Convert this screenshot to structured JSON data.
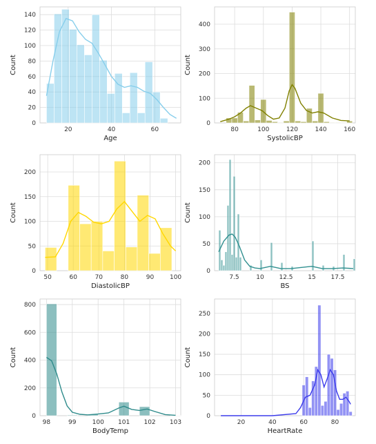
{
  "chart_data": [
    {
      "type": "bar",
      "xlabel": "Age",
      "ylabel": "Count",
      "color": "#87CEEB",
      "xlim": [
        7,
        72
      ],
      "ylim": [
        0,
        150
      ],
      "xticks": [
        20,
        40,
        60
      ],
      "yticks": [
        0,
        20,
        40,
        60,
        80,
        100,
        120,
        140
      ],
      "grid": true,
      "bins": [
        {
          "x0": 10,
          "x1": 13.5,
          "count": 51
        },
        {
          "x0": 13.5,
          "x1": 17,
          "count": 141
        },
        {
          "x0": 17,
          "x1": 20.5,
          "count": 147
        },
        {
          "x0": 20.5,
          "x1": 24,
          "count": 121
        },
        {
          "x0": 24,
          "x1": 27.5,
          "count": 101
        },
        {
          "x0": 27.5,
          "x1": 31,
          "count": 88
        },
        {
          "x0": 31,
          "x1": 34.5,
          "count": 140
        },
        {
          "x0": 34.5,
          "x1": 38,
          "count": 81
        },
        {
          "x0": 38,
          "x1": 41.5,
          "count": 38
        },
        {
          "x0": 41.5,
          "x1": 45,
          "count": 64
        },
        {
          "x0": 45,
          "x1": 48.5,
          "count": 13
        },
        {
          "x0": 48.5,
          "x1": 52,
          "count": 65
        },
        {
          "x0": 52,
          "x1": 55.5,
          "count": 13
        },
        {
          "x0": 55.5,
          "x1": 59,
          "count": 79
        },
        {
          "x0": 59,
          "x1": 62.5,
          "count": 40
        },
        {
          "x0": 62.5,
          "x1": 66,
          "count": 6
        }
      ],
      "kde": [
        [
          10,
          35
        ],
        [
          13,
          80
        ],
        [
          16,
          118
        ],
        [
          19,
          135
        ],
        [
          22,
          132
        ],
        [
          25,
          118
        ],
        [
          28,
          108
        ],
        [
          31,
          103
        ],
        [
          34,
          90
        ],
        [
          37,
          75
        ],
        [
          40,
          60
        ],
        [
          43,
          50
        ],
        [
          46,
          46
        ],
        [
          49,
          48
        ],
        [
          52,
          46
        ],
        [
          55,
          41
        ],
        [
          58,
          38
        ],
        [
          61,
          30
        ],
        [
          64,
          20
        ],
        [
          67,
          11
        ],
        [
          70,
          6
        ]
      ]
    },
    {
      "type": "bar",
      "xlabel": "SystolicBP",
      "ylabel": "Count",
      "color": "#808000",
      "xlim": [
        66,
        164
      ],
      "ylim": [
        0,
        470
      ],
      "xticks": [
        80,
        100,
        120,
        140,
        160
      ],
      "yticks": [
        0,
        100,
        200,
        300,
        400
      ],
      "grid": true,
      "bins": [
        {
          "x0": 74,
          "x1": 78,
          "count": 20
        },
        {
          "x0": 78,
          "x1": 82,
          "count": 20
        },
        {
          "x0": 82,
          "x1": 86,
          "count": 43
        },
        {
          "x0": 86,
          "x1": 90,
          "count": 8
        },
        {
          "x0": 90,
          "x1": 94,
          "count": 152
        },
        {
          "x0": 94,
          "x1": 98,
          "count": 12
        },
        {
          "x0": 98,
          "x1": 102,
          "count": 95
        },
        {
          "x0": 102,
          "x1": 106,
          "count": 10
        },
        {
          "x0": 106,
          "x1": 110,
          "count": 5
        },
        {
          "x0": 110,
          "x1": 114,
          "count": 2
        },
        {
          "x0": 114,
          "x1": 118,
          "count": 8
        },
        {
          "x0": 118,
          "x1": 122,
          "count": 449
        },
        {
          "x0": 122,
          "x1": 126,
          "count": 8
        },
        {
          "x0": 126,
          "x1": 130,
          "count": 5
        },
        {
          "x0": 130,
          "x1": 134,
          "count": 59
        },
        {
          "x0": 134,
          "x1": 138,
          "count": 8
        },
        {
          "x0": 138,
          "x1": 142,
          "count": 120
        },
        {
          "x0": 142,
          "x1": 146,
          "count": 5
        },
        {
          "x0": 146,
          "x1": 150,
          "count": 2
        },
        {
          "x0": 150,
          "x1": 154,
          "count": 2
        },
        {
          "x0": 154,
          "x1": 158,
          "count": 2
        },
        {
          "x0": 158,
          "x1": 162,
          "count": 8
        }
      ],
      "kde": [
        [
          70,
          5
        ],
        [
          76,
          15
        ],
        [
          80,
          25
        ],
        [
          84,
          40
        ],
        [
          88,
          60
        ],
        [
          91,
          70
        ],
        [
          95,
          60
        ],
        [
          99,
          50
        ],
        [
          103,
          30
        ],
        [
          107,
          15
        ],
        [
          111,
          20
        ],
        [
          115,
          60
        ],
        [
          118,
          130
        ],
        [
          120,
          155
        ],
        [
          122,
          140
        ],
        [
          126,
          80
        ],
        [
          130,
          50
        ],
        [
          134,
          40
        ],
        [
          138,
          45
        ],
        [
          142,
          40
        ],
        [
          148,
          20
        ],
        [
          154,
          10
        ],
        [
          160,
          8
        ]
      ]
    },
    {
      "type": "bar",
      "xlabel": "DiastolicBP",
      "ylabel": "Count",
      "color": "#FFD700",
      "xlim": [
        47,
        102
      ],
      "ylim": [
        0,
        235
      ],
      "xticks": [
        50,
        60,
        70,
        80,
        90,
        100
      ],
      "yticks": [
        0,
        50,
        100,
        150,
        200
      ],
      "grid": true,
      "bins": [
        {
          "x0": 49,
          "x1": 53.5,
          "count": 47
        },
        {
          "x0": 53.5,
          "x1": 58,
          "count": 0
        },
        {
          "x0": 58,
          "x1": 62.5,
          "count": 173
        },
        {
          "x0": 62.5,
          "x1": 67,
          "count": 95
        },
        {
          "x0": 67,
          "x1": 71.5,
          "count": 100
        },
        {
          "x0": 71.5,
          "x1": 76,
          "count": 40
        },
        {
          "x0": 76,
          "x1": 80.5,
          "count": 222
        },
        {
          "x0": 80.5,
          "x1": 85,
          "count": 48
        },
        {
          "x0": 85,
          "x1": 89.5,
          "count": 153
        },
        {
          "x0": 89.5,
          "x1": 94,
          "count": 35
        },
        {
          "x0": 94,
          "x1": 98.5,
          "count": 87
        }
      ],
      "kde": [
        [
          49,
          27
        ],
        [
          53,
          28
        ],
        [
          56,
          55
        ],
        [
          59,
          100
        ],
        [
          62,
          118
        ],
        [
          65,
          110
        ],
        [
          68,
          98
        ],
        [
          71,
          95
        ],
        [
          74,
          100
        ],
        [
          77,
          125
        ],
        [
          80,
          140
        ],
        [
          83,
          120
        ],
        [
          86,
          100
        ],
        [
          89,
          112
        ],
        [
          92,
          105
        ],
        [
          95,
          75
        ],
        [
          98,
          50
        ],
        [
          100,
          40
        ]
      ]
    },
    {
      "type": "bar",
      "xlabel": "BS",
      "ylabel": "Count",
      "color": "#2F8F8F",
      "xlim": [
        5.6,
        19.2
      ],
      "ylim": [
        0,
        215
      ],
      "xticks": [
        7.5,
        10.0,
        12.5,
        15.0,
        17.5
      ],
      "yticks": [
        0,
        50,
        100,
        150,
        200
      ],
      "grid": true,
      "bins": [
        {
          "x0": 6.0,
          "x1": 6.2,
          "count": 75
        },
        {
          "x0": 6.2,
          "x1": 6.4,
          "count": 20
        },
        {
          "x0": 6.4,
          "x1": 6.6,
          "count": 10
        },
        {
          "x0": 6.6,
          "x1": 6.8,
          "count": 35
        },
        {
          "x0": 6.8,
          "x1": 7.0,
          "count": 121
        },
        {
          "x0": 7.0,
          "x1": 7.2,
          "count": 206
        },
        {
          "x0": 7.2,
          "x1": 7.4,
          "count": 30
        },
        {
          "x0": 7.4,
          "x1": 7.6,
          "count": 175
        },
        {
          "x0": 7.6,
          "x1": 7.8,
          "count": 25
        },
        {
          "x0": 7.8,
          "x1": 8.0,
          "count": 105
        },
        {
          "x0": 8.0,
          "x1": 8.2,
          "count": 25
        },
        {
          "x0": 9.0,
          "x1": 9.2,
          "count": 10
        },
        {
          "x0": 10.0,
          "x1": 10.2,
          "count": 20
        },
        {
          "x0": 11.0,
          "x1": 11.2,
          "count": 52
        },
        {
          "x0": 12.0,
          "x1": 12.2,
          "count": 15
        },
        {
          "x0": 13.0,
          "x1": 13.2,
          "count": 8
        },
        {
          "x0": 15.0,
          "x1": 15.2,
          "count": 55
        },
        {
          "x0": 16.0,
          "x1": 16.2,
          "count": 10
        },
        {
          "x0": 17.0,
          "x1": 17.2,
          "count": 8
        },
        {
          "x0": 18.0,
          "x1": 18.2,
          "count": 30
        },
        {
          "x0": 19.0,
          "x1": 19.2,
          "count": 22
        }
      ],
      "kde": [
        [
          6.0,
          35
        ],
        [
          6.5,
          55
        ],
        [
          7.0,
          66
        ],
        [
          7.3,
          68
        ],
        [
          7.6,
          62
        ],
        [
          8.0,
          45
        ],
        [
          8.5,
          20
        ],
        [
          9.0,
          8
        ],
        [
          9.5,
          5
        ],
        [
          10,
          4
        ],
        [
          10.5,
          6
        ],
        [
          11,
          8
        ],
        [
          11.5,
          6
        ],
        [
          12,
          4
        ],
        [
          13,
          4
        ],
        [
          14,
          6
        ],
        [
          15,
          8
        ],
        [
          15.5,
          6
        ],
        [
          16,
          4
        ],
        [
          17,
          4
        ],
        [
          18,
          5
        ],
        [
          19,
          4
        ]
      ]
    },
    {
      "type": "bar",
      "xlabel": "BodyTemp",
      "ylabel": "Count",
      "color": "#2E8B8B",
      "xlim": [
        97.75,
        103.2
      ],
      "ylim": [
        0,
        840
      ],
      "xticks": [
        98,
        99,
        100,
        101,
        102,
        103
      ],
      "yticks": [
        0,
        200,
        400,
        600,
        800
      ],
      "grid": true,
      "bins": [
        {
          "x0": 98.0,
          "x1": 98.4,
          "count": 805
        },
        {
          "x0": 98.4,
          "x1": 98.8,
          "count": 0
        },
        {
          "x0": 98.8,
          "x1": 99.2,
          "count": 5
        },
        {
          "x0": 99.6,
          "x1": 100.0,
          "count": 10
        },
        {
          "x0": 100.8,
          "x1": 101.2,
          "count": 98
        },
        {
          "x0": 101.6,
          "x1": 102.0,
          "count": 65
        },
        {
          "x0": 102.8,
          "x1": 103.2,
          "count": 2
        }
      ],
      "kde": [
        [
          98.0,
          420
        ],
        [
          98.2,
          395
        ],
        [
          98.4,
          300
        ],
        [
          98.6,
          170
        ],
        [
          98.8,
          70
        ],
        [
          99.0,
          25
        ],
        [
          99.3,
          10
        ],
        [
          99.6,
          6
        ],
        [
          100,
          12
        ],
        [
          100.4,
          20
        ],
        [
          100.8,
          55
        ],
        [
          101.0,
          68
        ],
        [
          101.3,
          45
        ],
        [
          101.6,
          38
        ],
        [
          101.9,
          48
        ],
        [
          102.2,
          30
        ],
        [
          102.6,
          8
        ],
        [
          103.0,
          3
        ]
      ]
    },
    {
      "type": "bar",
      "xlabel": "HeartRate",
      "ylabel": "Count",
      "color": "#3B3BEB",
      "xlim": [
        3,
        93
      ],
      "ylim": [
        0,
        285
      ],
      "xticks": [
        20,
        40,
        60,
        80
      ],
      "yticks": [
        0,
        50,
        100,
        150,
        200,
        250
      ],
      "grid": true,
      "bins": [
        {
          "x0": 59,
          "x1": 61,
          "count": 75
        },
        {
          "x0": 61,
          "x1": 63,
          "count": 95
        },
        {
          "x0": 63,
          "x1": 65,
          "count": 20
        },
        {
          "x0": 65,
          "x1": 67,
          "count": 85
        },
        {
          "x0": 67,
          "x1": 69,
          "count": 120
        },
        {
          "x0": 69,
          "x1": 71,
          "count": 270
        },
        {
          "x0": 71,
          "x1": 73,
          "count": 25
        },
        {
          "x0": 73,
          "x1": 75,
          "count": 35
        },
        {
          "x0": 75,
          "x1": 77,
          "count": 150
        },
        {
          "x0": 77,
          "x1": 79,
          "count": 140
        },
        {
          "x0": 79,
          "x1": 81,
          "count": 112
        },
        {
          "x0": 81,
          "x1": 83,
          "count": 15
        },
        {
          "x0": 83,
          "x1": 85,
          "count": 30
        },
        {
          "x0": 85,
          "x1": 87,
          "count": 55
        },
        {
          "x0": 87,
          "x1": 89,
          "count": 60
        },
        {
          "x0": 89,
          "x1": 91,
          "count": 10
        }
      ],
      "kde": [
        [
          7,
          0
        ],
        [
          40,
          0
        ],
        [
          55,
          5
        ],
        [
          58,
          20
        ],
        [
          61,
          45
        ],
        [
          64,
          50
        ],
        [
          67,
          75
        ],
        [
          69,
          112
        ],
        [
          71,
          100
        ],
        [
          73,
          70
        ],
        [
          75,
          90
        ],
        [
          77,
          112
        ],
        [
          79,
          100
        ],
        [
          81,
          60
        ],
        [
          83,
          40
        ],
        [
          85,
          40
        ],
        [
          87,
          45
        ],
        [
          89,
          35
        ],
        [
          90,
          28
        ]
      ]
    }
  ]
}
